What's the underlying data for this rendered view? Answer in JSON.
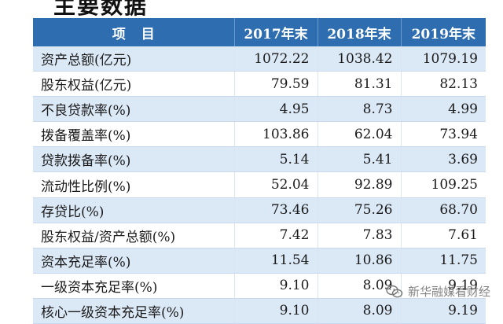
{
  "title": "主要数据",
  "header": {
    "item": "项目",
    "y2017": "2017年末",
    "y2018": "2018年末",
    "y2019": "2019年末"
  },
  "rows": [
    {
      "name": "资产总额(亿元)",
      "v2017": "1072.22",
      "v2018": "1038.42",
      "v2019": "1079.19"
    },
    {
      "name": "股东权益(亿元)",
      "v2017": "79.59",
      "v2018": "81.31",
      "v2019": "82.13"
    },
    {
      "name": "不良贷款率(%)",
      "v2017": "4.95",
      "v2018": "8.73",
      "v2019": "4.99"
    },
    {
      "name": "拨备覆盖率(%)",
      "v2017": "103.86",
      "v2018": "62.04",
      "v2019": "73.94"
    },
    {
      "name": "贷款拨备率(%)",
      "v2017": "5.14",
      "v2018": "5.41",
      "v2019": "3.69"
    },
    {
      "name": "流动性比例(%)",
      "v2017": "52.04",
      "v2018": "92.89",
      "v2019": "109.25"
    },
    {
      "name": "存贷比(%)",
      "v2017": "73.46",
      "v2018": "75.26",
      "v2019": "68.70"
    },
    {
      "name": "股东权益/资产总额(%)",
      "v2017": "7.42",
      "v2018": "7.83",
      "v2019": "7.61"
    },
    {
      "name": "资本充足率(%)",
      "v2017": "11.54",
      "v2018": "10.86",
      "v2019": "11.75"
    },
    {
      "name": "一级资本充足率(%)",
      "v2017": "9.10",
      "v2018": "8.09",
      "v2019": "9.19"
    },
    {
      "name": "核心一级资本充足率(%)",
      "v2017": "9.10",
      "v2018": "8.09",
      "v2019": "9.19"
    }
  ],
  "watermark": {
    "text": "新华融媒看财经",
    "icon": "wechat-icon"
  },
  "colors": {
    "header_bg": "#2e6eb0",
    "row_stripe": "#dbe8f6"
  }
}
